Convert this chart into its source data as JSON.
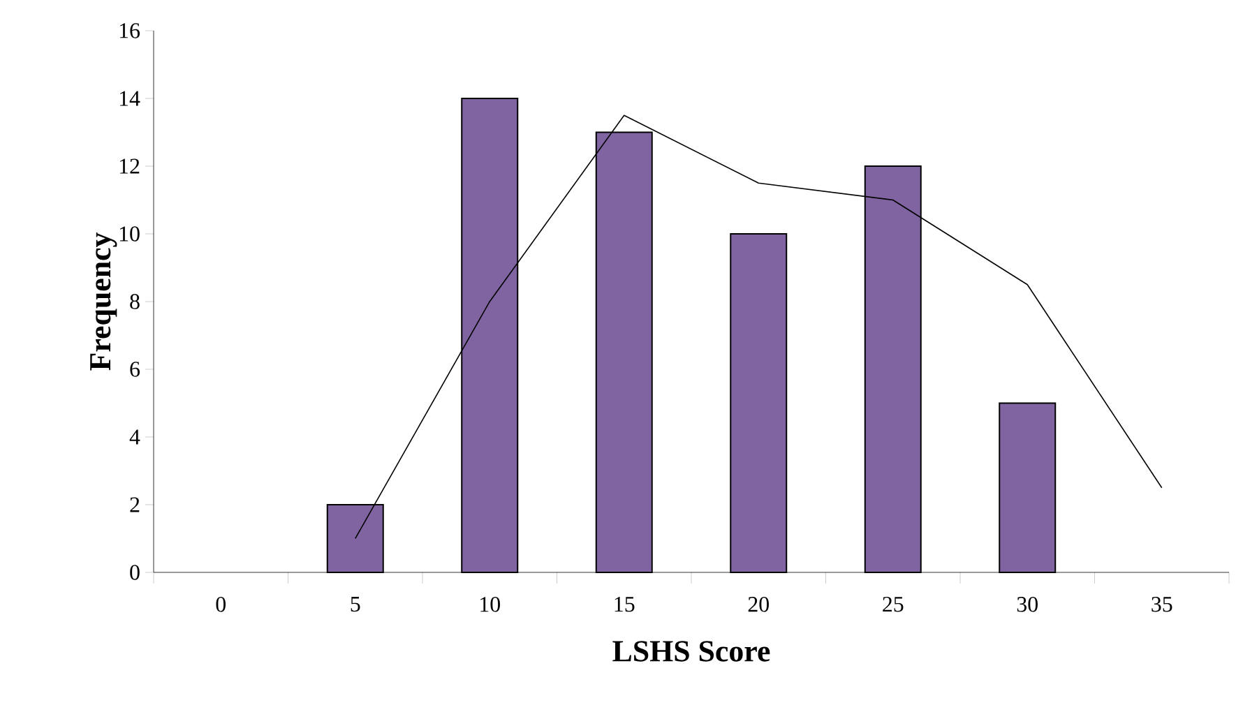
{
  "chart_data": {
    "type": "bar",
    "xlabel": "LSHS Score",
    "ylabel": "Frequency",
    "categories": [
      "0",
      "5",
      "10",
      "15",
      "20",
      "25",
      "30",
      "35"
    ],
    "series": [
      {
        "color": "#8064a2",
        "values": [
          null,
          2,
          14,
          13,
          10,
          12,
          5,
          null
        ]
      },
      {
        "type": "line",
        "color": "#000000",
        "values": [
          null,
          1,
          8,
          13.5,
          11.5,
          11,
          8.5,
          2.5
        ]
      }
    ],
    "ylim": [
      0,
      16
    ],
    "yticks": [
      0,
      2,
      4,
      6,
      8,
      10,
      12,
      14,
      16
    ],
    "grid": false,
    "marker": "none",
    "line_style": "solid"
  }
}
